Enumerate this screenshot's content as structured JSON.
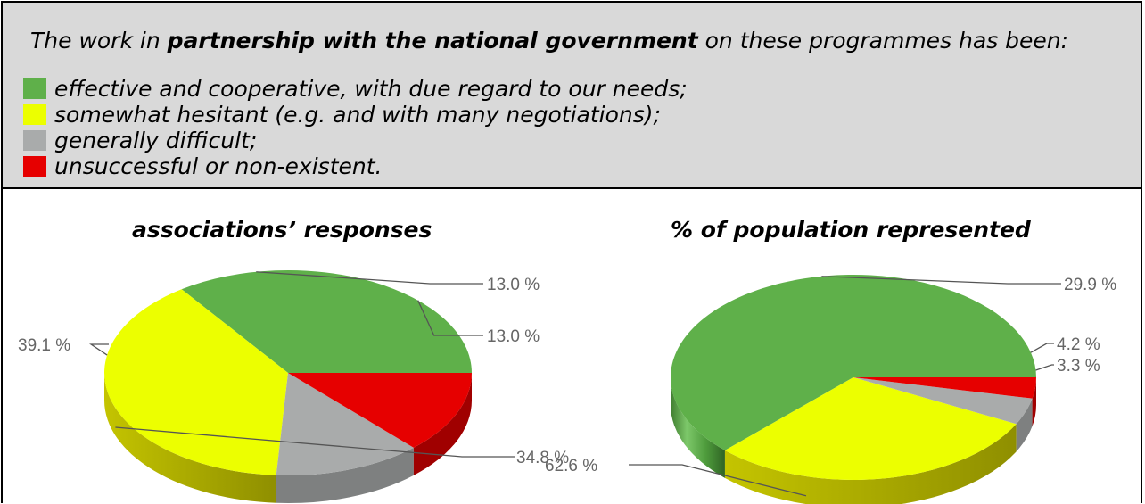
{
  "question": {
    "prefix": "The work in ",
    "emphasis": "partnership with the national government",
    "suffix": " on these programmes has been:"
  },
  "legend": [
    {
      "label": "effective and cooperative, with due regard to our needs;",
      "color": "#5fb04a"
    },
    {
      "label": "somewhat hesitant (e.g. and with many negotiations);",
      "color": "#ecff00"
    },
    {
      "label": "generally difficult;",
      "color": "#a9abab"
    },
    {
      "label": "unsuccessful or non-existent.",
      "color": "#e60000"
    }
  ],
  "chart_data": [
    {
      "type": "pie",
      "title": "associations’ responses",
      "categories": [
        "effective and cooperative, with due regard to our needs;",
        "somewhat hesitant (e.g. and with many negotiations);",
        "generally difficult;",
        "unsuccessful or non-existent."
      ],
      "values": [
        34.8,
        39.1,
        13.0,
        13.0
      ],
      "labels": [
        "34.8 %",
        "39.1 %",
        "13.0 %",
        "13.0 %"
      ]
    },
    {
      "type": "pie",
      "title": "% of population represented",
      "categories": [
        "effective and cooperative, with due regard to our needs;",
        "somewhat hesitant (e.g. and with many negotiations);",
        "generally difficult;",
        "unsuccessful or non-existent."
      ],
      "values": [
        62.6,
        29.9,
        4.2,
        3.3
      ],
      "labels": [
        "62.6 %",
        "29.9 %",
        "4.2 %",
        "3.3 %"
      ]
    }
  ]
}
